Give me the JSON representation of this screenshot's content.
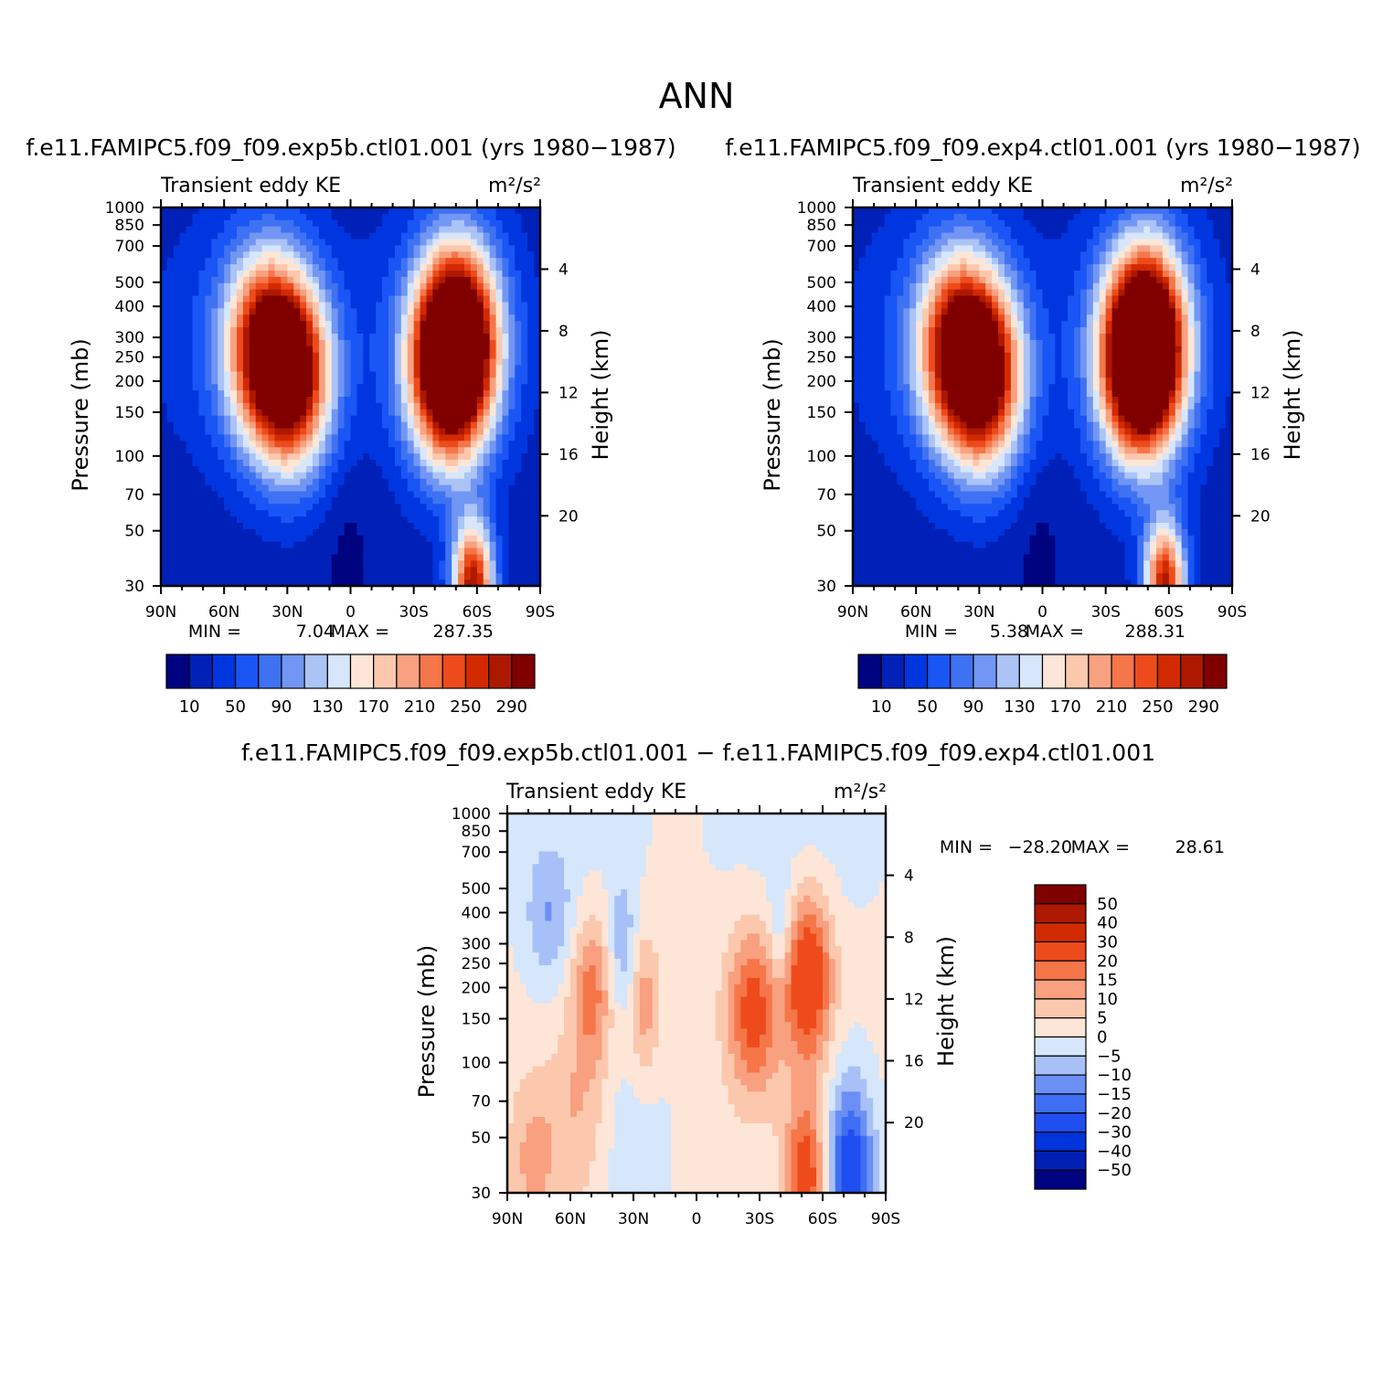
{
  "page_title": "ANN",
  "colors": {
    "abs_scale": [
      "#00037f",
      "#0021b8",
      "#0036e0",
      "#1a55f5",
      "#3f72f2",
      "#7296f4",
      "#acc3f6",
      "#d7e6fb",
      "#fde6d7",
      "#fbc8ae",
      "#f7a180",
      "#f57649",
      "#ee4b1c",
      "#d22a00",
      "#ad1800",
      "#800000"
    ],
    "diff_scale": [
      "#00037f",
      "#0020b3",
      "#0035dc",
      "#1f4ff0",
      "#3f6ef2",
      "#6b8ff4",
      "#a7c0f7",
      "#d6e6fb",
      "#fde6d8",
      "#fbc8ae",
      "#f8a07f",
      "#f57649",
      "#ee4b1c",
      "#d22a00",
      "#ad1800",
      "#800000"
    ]
  },
  "chart_data": [
    {
      "id": "panel1",
      "type": "heatmap",
      "title": "f.e11.FAMIPC5.f09_f09.exp5b.ctl01.001 (yrs 1980−1987)",
      "left_label": "Transient eddy KE",
      "units_label": "m²/s²",
      "xlabel": "",
      "ylabel": "Pressure (mb)",
      "y2label": "Height (km)",
      "x_range": [
        90,
        -90
      ],
      "x_ticks": [
        {
          "v": 90,
          "l": "90N"
        },
        {
          "v": 60,
          "l": "60N"
        },
        {
          "v": 30,
          "l": "30N"
        },
        {
          "v": 0,
          "l": "0"
        },
        {
          "v": -30,
          "l": "30S"
        },
        {
          "v": -60,
          "l": "60S"
        },
        {
          "v": -90,
          "l": "90S"
        }
      ],
      "y_range": [
        1000,
        30
      ],
      "y_ticks": [
        30,
        50,
        70,
        100,
        150,
        200,
        250,
        300,
        400,
        500,
        700,
        850,
        1000
      ],
      "height_ticks": [
        20,
        16,
        12,
        8,
        4
      ],
      "levels": [
        10,
        30,
        50,
        70,
        90,
        110,
        130,
        150,
        170,
        190,
        210,
        230,
        250,
        270,
        290
      ],
      "colorbar_labels": [
        "10",
        "50",
        "90",
        "130",
        "170",
        "210",
        "250",
        "290"
      ],
      "min_label": "MIN =",
      "min_value": "7.04",
      "max_label": "MAX =",
      "max_value": "287.35",
      "features": [
        {
          "lat": 27,
          "p": 210,
          "amp": 270
        },
        {
          "lat": 42,
          "p": 275,
          "amp": 215
        },
        {
          "lat": -45,
          "p": 220,
          "amp": 225
        },
        {
          "lat": -52,
          "p": 290,
          "amp": 285
        },
        {
          "lat": -58,
          "p": 30,
          "amp": 270
        }
      ]
    },
    {
      "id": "panel2",
      "type": "heatmap",
      "title": "f.e11.FAMIPC5.f09_f09.exp4.ctl01.001 (yrs 1980−1987)",
      "left_label": "Transient eddy KE",
      "units_label": "m²/s²",
      "xlabel": "",
      "ylabel": "Pressure (mb)",
      "y2label": "Height (km)",
      "x_range": [
        90,
        -90
      ],
      "x_ticks": [
        {
          "v": 90,
          "l": "90N"
        },
        {
          "v": 60,
          "l": "60N"
        },
        {
          "v": 30,
          "l": "30N"
        },
        {
          "v": 0,
          "l": "0"
        },
        {
          "v": -30,
          "l": "30S"
        },
        {
          "v": -60,
          "l": "60S"
        },
        {
          "v": -90,
          "l": "90S"
        }
      ],
      "y_range": [
        1000,
        30
      ],
      "y_ticks": [
        30,
        50,
        70,
        100,
        150,
        200,
        250,
        300,
        400,
        500,
        700,
        850,
        1000
      ],
      "height_ticks": [
        20,
        16,
        12,
        8,
        4
      ],
      "levels": [
        10,
        30,
        50,
        70,
        90,
        110,
        130,
        150,
        170,
        190,
        210,
        230,
        250,
        270,
        290
      ],
      "colorbar_labels": [
        "10",
        "50",
        "90",
        "130",
        "170",
        "210",
        "250",
        "290"
      ],
      "min_label": "MIN =",
      "min_value": "5.38",
      "max_label": "MAX =",
      "max_value": "288.31",
      "features": [
        {
          "lat": 27,
          "p": 210,
          "amp": 270
        },
        {
          "lat": 42,
          "p": 275,
          "amp": 215
        },
        {
          "lat": -45,
          "p": 230,
          "amp": 225
        },
        {
          "lat": -50,
          "p": 285,
          "amp": 285
        },
        {
          "lat": -58,
          "p": 30,
          "amp": 260
        }
      ]
    },
    {
      "id": "panel3",
      "type": "heatmap",
      "title": "f.e11.FAMIPC5.f09_f09.exp5b.ctl01.001 − f.e11.FAMIPC5.f09_f09.exp4.ctl01.001",
      "left_label": "Transient eddy KE",
      "units_label": "m²/s²",
      "xlabel": "",
      "ylabel": "Pressure (mb)",
      "y2label": "Height (km)",
      "x_range": [
        90,
        -90
      ],
      "x_ticks": [
        {
          "v": 90,
          "l": "90N"
        },
        {
          "v": 60,
          "l": "60N"
        },
        {
          "v": 30,
          "l": "30N"
        },
        {
          "v": 0,
          "l": "0"
        },
        {
          "v": -30,
          "l": "30S"
        },
        {
          "v": -60,
          "l": "60S"
        },
        {
          "v": -90,
          "l": "90S"
        }
      ],
      "y_range": [
        1000,
        30
      ],
      "y_ticks": [
        30,
        50,
        70,
        100,
        150,
        200,
        250,
        300,
        400,
        500,
        700,
        850,
        1000
      ],
      "height_ticks": [
        20,
        16,
        12,
        8,
        4
      ],
      "levels": [
        -50,
        -40,
        -30,
        -20,
        -15,
        -10,
        -5,
        0,
        5,
        10,
        15,
        20,
        30,
        40,
        50
      ],
      "colorbar_labels": [
        "50",
        "40",
        "30",
        "20",
        "15",
        "10",
        "5",
        "0",
        "−5",
        "−10",
        "−15",
        "−20",
        "−30",
        "−40",
        "−50"
      ],
      "min_label": "MIN =",
      "min_value": "−28.20",
      "max_label": "MAX =",
      "max_value": "28.61",
      "features": [
        {
          "lat": -27,
          "p": 160,
          "amp": 22,
          "wlat": 9,
          "wp": 0.55
        },
        {
          "lat": -53,
          "p": 220,
          "amp": 28,
          "wlat": 8,
          "wp": 0.55
        },
        {
          "lat": 50,
          "p": 195,
          "amp": 16,
          "wlat": 7,
          "wp": 0.5
        },
        {
          "lat": 25,
          "p": 170,
          "amp": 12,
          "wlat": 5,
          "wp": 0.5
        },
        {
          "lat": -52,
          "p": 35,
          "amp": 24,
          "wlat": 7,
          "wp": 0.5
        },
        {
          "lat": 78,
          "p": 40,
          "amp": 10,
          "wlat": 8,
          "wp": 0.55
        },
        {
          "lat": 57,
          "p": 60,
          "amp": 8,
          "wlat": 10,
          "wp": 0.6
        },
        {
          "lat": 70,
          "p": 380,
          "amp": -10,
          "wlat": 8,
          "wp": 0.45
        },
        {
          "lat": 35,
          "p": 300,
          "amp": -10,
          "wlat": 5,
          "wp": 0.45
        },
        {
          "lat": -40,
          "p": 320,
          "amp": -9,
          "wlat": 4,
          "wp": 0.4
        },
        {
          "lat": -73,
          "p": 35,
          "amp": -28,
          "wlat": 8,
          "wp": 0.6
        },
        {
          "lat": 30,
          "p": 45,
          "amp": -5,
          "wlat": 12,
          "wp": 0.7
        },
        {
          "lat": -50,
          "p": 800,
          "amp": -4,
          "wlat": 30,
          "wp": 0.7
        },
        {
          "lat": 60,
          "p": 800,
          "amp": -3,
          "wlat": 30,
          "wp": 0.8
        }
      ]
    }
  ]
}
